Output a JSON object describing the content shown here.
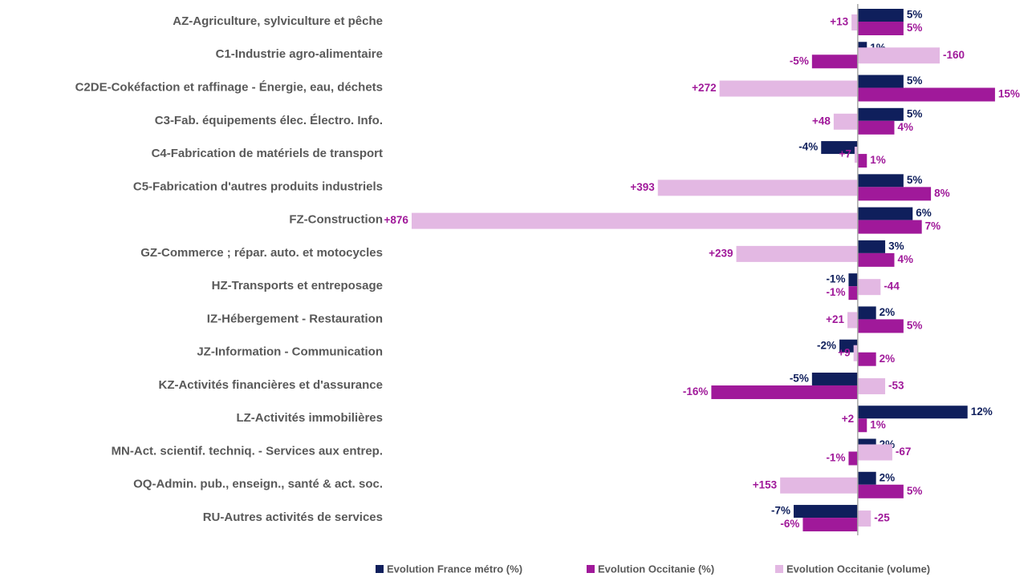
{
  "chart_data": {
    "type": "bar",
    "orientation": "horizontal",
    "categories": [
      "AZ-Agriculture, sylviculture et pêche",
      "C1-Industrie agro-alimentaire",
      "C2DE-Cokéfaction et raffinage - Énergie, eau, déchets",
      "C3-Fab. équipements élec. Électro. Info.",
      "C4-Fabrication de matériels de transport",
      "C5-Fabrication d'autres produits industriels",
      "FZ-Construction",
      "GZ-Commerce ; répar. auto. et  motocycles",
      "HZ-Transports et entreposage",
      "IZ-Hébergement - Restauration",
      "JZ-Information - Communication",
      "KZ-Activités financières et d'assurance",
      "LZ-Activités immobilières",
      "MN-Act. scientif. techniq. - Services aux entrep.",
      "OQ-Admin. pub., enseign., santé & act. soc.",
      "RU-Autres activités de services"
    ],
    "xlim": [
      -51.2,
      17.2
    ],
    "x2lim": [
      920,
      -308
    ],
    "legend": "bottom",
    "series": [
      {
        "name": "Evolution France métro (%)",
        "color": "#0f1f5c",
        "values": [
          5,
          1,
          5,
          5,
          -4,
          5,
          6,
          3,
          -1,
          2,
          -2,
          -5,
          12,
          2,
          2,
          -7
        ],
        "value_labels": [
          "5%",
          "1%",
          "5%",
          "5%",
          "-4%",
          "5%",
          "6%",
          "3%",
          "-1%",
          "2%",
          "-2%",
          "-5%",
          "12%",
          "2%",
          "2%",
          "-7%"
        ]
      },
      {
        "name": "Evolution Occitanie (%)",
        "color": "#a0199a",
        "values": [
          5,
          -5,
          15,
          4,
          1,
          8,
          7,
          4,
          -1,
          5,
          2,
          -16,
          1,
          -1,
          5,
          -6
        ],
        "value_labels": [
          "5%",
          "-5%",
          "15%",
          "4%",
          "1%",
          "8%",
          "7%",
          "4%",
          "-1%",
          "5%",
          "2%",
          "-16%",
          "1%",
          "-1%",
          "5%",
          "-6%"
        ]
      },
      {
        "name": "Evolution Occitanie (volume)",
        "color": "#e3b8e3",
        "axis": "x2",
        "label_color": "#a0199a",
        "values": [
          13,
          -160,
          272,
          48,
          7,
          393,
          876,
          239,
          -44,
          21,
          9,
          -53,
          2,
          -67,
          153,
          -25
        ],
        "value_labels": [
          "+13",
          "-160",
          "+272",
          "+48",
          "+7",
          "+393",
          "+876",
          "+239",
          "-44",
          "+21",
          "+9",
          "-53",
          "+2",
          "-67",
          "+153",
          "-25"
        ]
      }
    ]
  }
}
